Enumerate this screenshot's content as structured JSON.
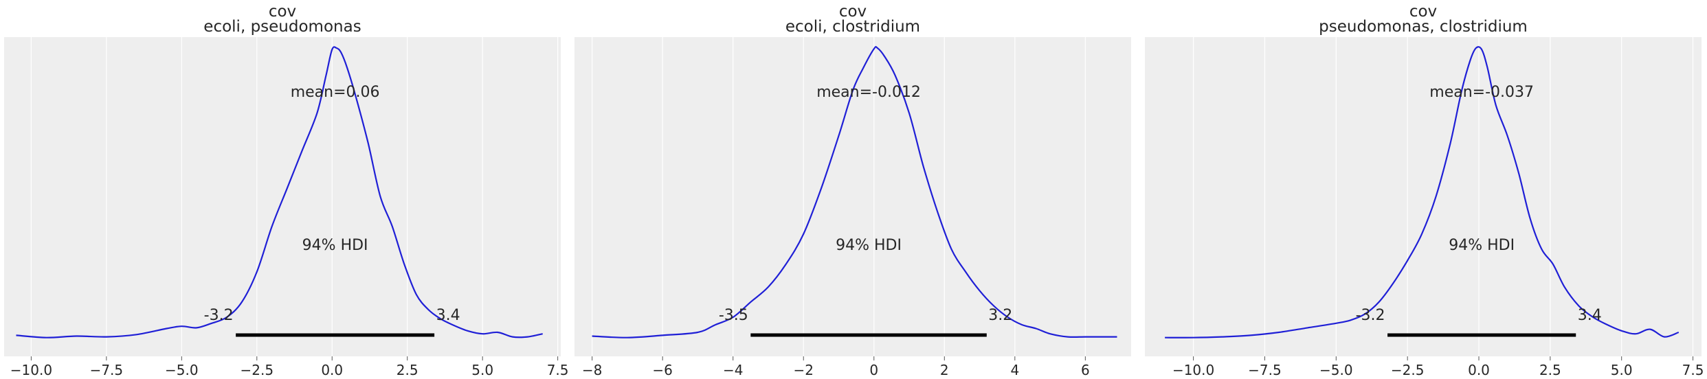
{
  "chart_data": [
    {
      "type": "line",
      "title": "cov",
      "subtitle": "ecoli, pseudomonas",
      "xlabel": "",
      "ylabel": "",
      "xlim": [
        -10.9,
        7.6
      ],
      "x_ticks": [
        -10,
        -7.5,
        -5,
        -2.5,
        0,
        2.5,
        5,
        7.5
      ],
      "x_tick_labels": [
        "−10.0",
        "−7.5",
        "−5.0",
        "−2.5",
        "0.0",
        "2.5",
        "5.0",
        "7.5"
      ],
      "y_ticks_shown": false,
      "grid": "vertical",
      "series": [
        {
          "color": "#1f1fd6",
          "x": [
            -10.5,
            -9.5,
            -8.5,
            -7.5,
            -6.5,
            -5.5,
            -5.0,
            -4.5,
            -4.0,
            -3.5,
            -3.0,
            -2.5,
            -2.0,
            -1.5,
            -1.0,
            -0.5,
            -0.2,
            0.0,
            0.15,
            0.3,
            0.5,
            0.8,
            1.2,
            1.6,
            2.0,
            2.4,
            2.8,
            3.2,
            3.6,
            4.0,
            4.5,
            5.0,
            5.5,
            6.0,
            6.5,
            7.0
          ],
          "y": [
            0.006,
            0.003,
            0.005,
            0.004,
            0.007,
            0.015,
            0.018,
            0.016,
            0.022,
            0.03,
            0.05,
            0.09,
            0.15,
            0.2,
            0.25,
            0.3,
            0.35,
            0.384,
            0.386,
            0.38,
            0.36,
            0.32,
            0.26,
            0.19,
            0.15,
            0.1,
            0.06,
            0.04,
            0.028,
            0.02,
            0.012,
            0.008,
            0.01,
            0.004,
            0.004,
            0.008
          ]
        }
      ],
      "hdi": {
        "low": -3.2,
        "high": 3.4,
        "low_label": "-3.2",
        "high_label": "3.4",
        "label": "94% HDI",
        "color": "#000000"
      },
      "mean_label": "mean=0.06"
    },
    {
      "type": "line",
      "title": "cov",
      "subtitle": "ecoli, clostridium",
      "xlabel": "",
      "ylabel": "",
      "xlim": [
        -8.5,
        7.3
      ],
      "x_ticks": [
        -8,
        -6,
        -4,
        -2,
        0,
        2,
        4,
        6
      ],
      "x_tick_labels": [
        "−8",
        "−6",
        "−4",
        "−2",
        "0",
        "2",
        "4",
        "6"
      ],
      "y_ticks_shown": false,
      "grid": "vertical",
      "series": [
        {
          "color": "#1f1fd6",
          "x": [
            -8.0,
            -7.0,
            -6.0,
            -5.0,
            -4.5,
            -4.0,
            -3.5,
            -3.0,
            -2.5,
            -2.0,
            -1.5,
            -1.0,
            -0.6,
            -0.3,
            0.0,
            0.1,
            0.3,
            0.6,
            1.0,
            1.4,
            1.8,
            2.2,
            2.6,
            3.0,
            3.4,
            3.8,
            4.2,
            4.6,
            5.0,
            5.5,
            6.0,
            6.5,
            6.9
          ],
          "y": [
            0.005,
            0.003,
            0.006,
            0.01,
            0.02,
            0.03,
            0.05,
            0.07,
            0.1,
            0.14,
            0.2,
            0.27,
            0.33,
            0.36,
            0.385,
            0.386,
            0.375,
            0.35,
            0.3,
            0.23,
            0.17,
            0.12,
            0.09,
            0.065,
            0.045,
            0.03,
            0.02,
            0.015,
            0.008,
            0.004,
            0.004,
            0.004,
            0.004
          ]
        }
      ],
      "hdi": {
        "low": -3.5,
        "high": 3.2,
        "low_label": "-3.5",
        "high_label": "3.2",
        "label": "94% HDI",
        "color": "#000000"
      },
      "mean_label": "mean=-0.012"
    },
    {
      "type": "line",
      "title": "cov",
      "subtitle": "pseudomonas, clostridium",
      "xlabel": "",
      "ylabel": "",
      "xlim": [
        -11.7,
        7.8
      ],
      "x_ticks": [
        -10,
        -7.5,
        -5,
        -2.5,
        0,
        2.5,
        5,
        7.5
      ],
      "x_tick_labels": [
        "−10.0",
        "−7.5",
        "−5.0",
        "−2.5",
        "0.0",
        "2.5",
        "5.0",
        "7.5"
      ],
      "y_ticks_shown": false,
      "grid": "vertical",
      "series": [
        {
          "color": "#1f1fd6",
          "x": [
            -11.0,
            -10.0,
            -9.0,
            -8.0,
            -7.0,
            -6.0,
            -5.0,
            -4.5,
            -4.0,
            -3.5,
            -3.0,
            -2.5,
            -2.0,
            -1.5,
            -1.0,
            -0.6,
            -0.3,
            -0.1,
            0.1,
            0.3,
            0.6,
            1.0,
            1.4,
            1.8,
            2.2,
            2.6,
            3.0,
            3.5,
            4.0,
            4.5,
            5.0,
            5.5,
            6.0,
            6.5,
            7.0
          ],
          "y": [
            0.003,
            0.003,
            0.004,
            0.006,
            0.01,
            0.016,
            0.022,
            0.026,
            0.034,
            0.05,
            0.075,
            0.105,
            0.14,
            0.19,
            0.26,
            0.33,
            0.37,
            0.386,
            0.384,
            0.36,
            0.31,
            0.27,
            0.22,
            0.16,
            0.12,
            0.1,
            0.07,
            0.045,
            0.03,
            0.02,
            0.012,
            0.008,
            0.014,
            0.004,
            0.01
          ]
        }
      ],
      "hdi": {
        "low": -3.2,
        "high": 3.4,
        "low_label": "-3.2",
        "high_label": "3.4",
        "label": "94% HDI",
        "color": "#000000"
      },
      "mean_label": "mean=-0.037"
    }
  ]
}
